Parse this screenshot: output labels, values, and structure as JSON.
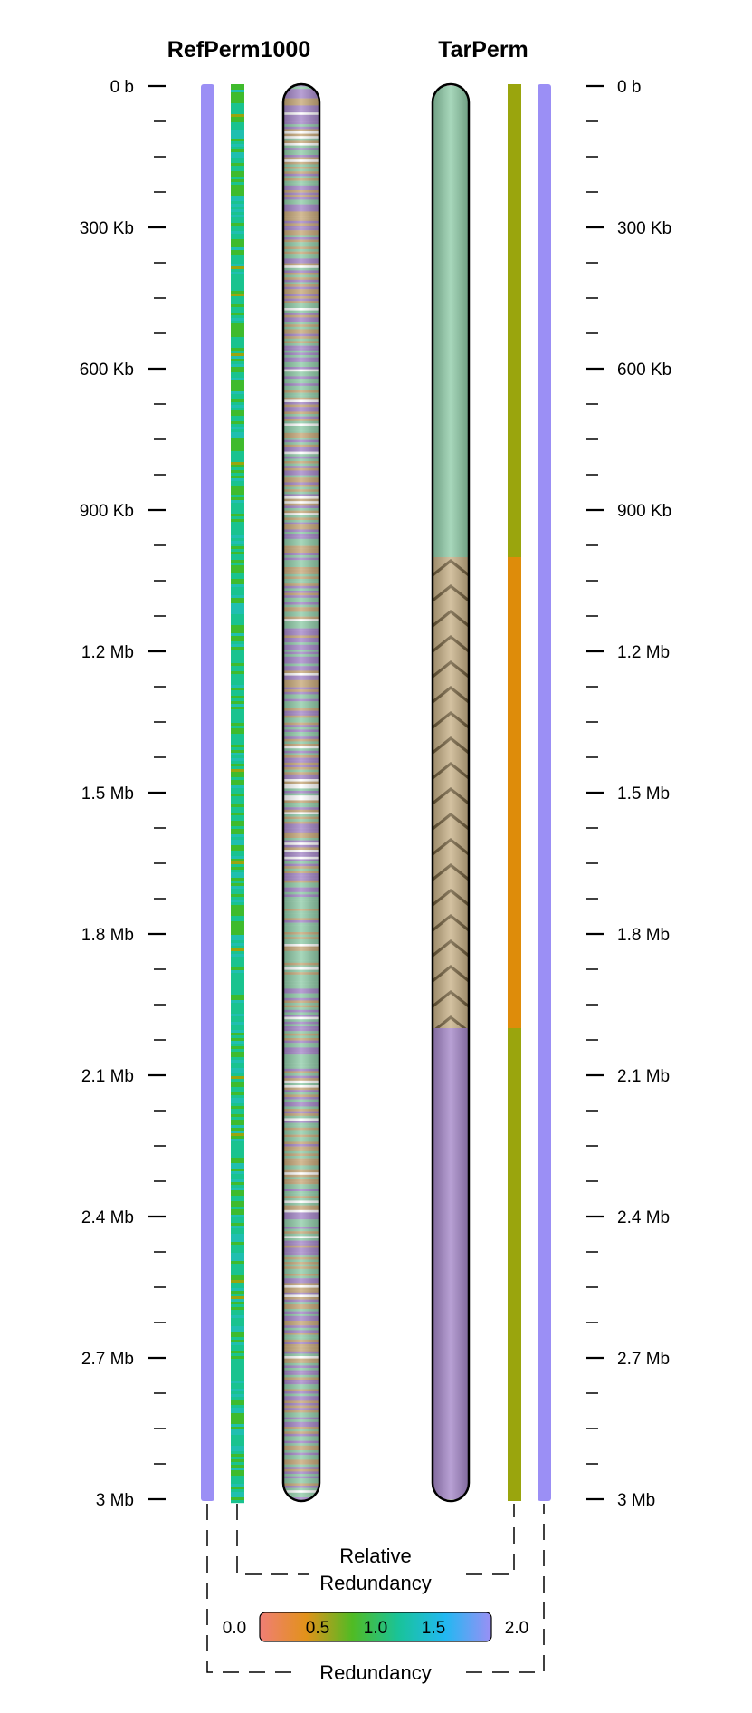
{
  "titles": {
    "left": "RefPerm1000",
    "right": "TarPerm"
  },
  "axis": {
    "min_bp": 0,
    "max_bp": 3000000,
    "major_ticks": [
      {
        "bp": 0,
        "label": "0 b"
      },
      {
        "bp": 300000,
        "label": "300 Kb"
      },
      {
        "bp": 600000,
        "label": "600 Kb"
      },
      {
        "bp": 900000,
        "label": "900 Kb"
      },
      {
        "bp": 1200000,
        "label": "1.2 Mb"
      },
      {
        "bp": 1500000,
        "label": "1.5 Mb"
      },
      {
        "bp": 1800000,
        "label": "1.8 Mb"
      },
      {
        "bp": 2100000,
        "label": "2.1 Mb"
      },
      {
        "bp": 2400000,
        "label": "2.4 Mb"
      },
      {
        "bp": 2700000,
        "label": "2.7 Mb"
      },
      {
        "bp": 3000000,
        "label": "3 Mb"
      }
    ],
    "minor_per_major": 3
  },
  "tracks": {
    "left_redundancy_color": "#9b8ff5",
    "right_redundancy_color": "#9b8ff5",
    "relative_redundancy_right_segments": [
      {
        "start_bp": 0,
        "end_bp": 1000000,
        "color": "#9aa50d"
      },
      {
        "start_bp": 1000000,
        "end_bp": 2000000,
        "color": "#de8c0a"
      },
      {
        "start_bp": 2000000,
        "end_bp": 3000000,
        "color": "#9aa50d"
      }
    ],
    "right_chromosome_segments": [
      {
        "start_bp": 0,
        "end_bp": 1000000,
        "color": "#8fcca8",
        "pattern": "none"
      },
      {
        "start_bp": 1000000,
        "end_bp": 2000000,
        "color": "#c7b086",
        "pattern": "chevron"
      },
      {
        "start_bp": 2000000,
        "end_bp": 3000000,
        "color": "#a486c8",
        "pattern": "none"
      }
    ],
    "left_chromosome_palette": [
      "#8fcca8",
      "#c7a878",
      "#a486c8",
      "#ffffff"
    ],
    "left_relative_palette": [
      "#19c38f",
      "#3fbb2d",
      "#1fbfb0",
      "#9aa50d"
    ]
  },
  "legend": {
    "relative_label_line1": "Relative",
    "relative_label_line2": "Redundancy",
    "redundancy_label": "Redundancy",
    "scale_min": "0.0",
    "scale_max": "2.0",
    "scale_ticks": [
      "0.5",
      "1.0",
      "1.5"
    ],
    "gradient_colors": [
      "#f07e76",
      "#e2921a",
      "#50bb24",
      "#19c39a",
      "#21b8f2",
      "#9b8ff5"
    ]
  }
}
